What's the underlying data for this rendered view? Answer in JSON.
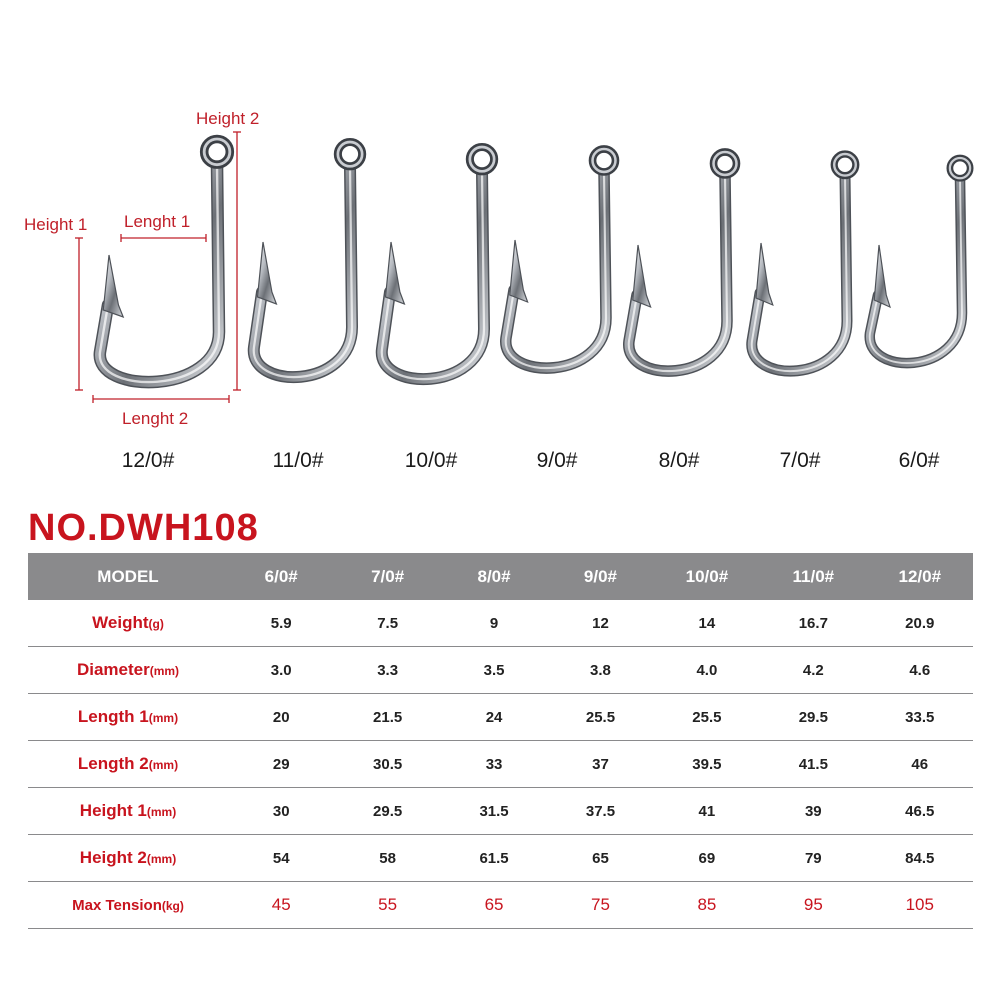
{
  "dimension_labels": {
    "height1": "Height 1",
    "height2": "Height 2",
    "length1": "Lenght 1",
    "length2": "Lenght 2"
  },
  "hook_sizes": [
    "12/0#",
    "11/0#",
    "10/0#",
    "9/0#",
    "8/0#",
    "7/0#",
    "6/0#"
  ],
  "product_code": "NO.DWH108",
  "spec_table": {
    "header_label": "MODEL",
    "models": [
      "6/0#",
      "7/0#",
      "8/0#",
      "9/0#",
      "10/0#",
      "11/0#",
      "12/0#"
    ],
    "rows": [
      {
        "label": "Weight",
        "unit": "(g)",
        "values": [
          "5.9",
          "7.5",
          "9",
          "12",
          "14",
          "16.7",
          "20.9"
        ]
      },
      {
        "label": "Diameter",
        "unit": "(mm)",
        "values": [
          "3.0",
          "3.3",
          "3.5",
          "3.8",
          "4.0",
          "4.2",
          "4.6"
        ]
      },
      {
        "label": "Length 1",
        "unit": "(mm)",
        "values": [
          "20",
          "21.5",
          "24",
          "25.5",
          "25.5",
          "29.5",
          "33.5"
        ]
      },
      {
        "label": "Length 2",
        "unit": "(mm)",
        "values": [
          "29",
          "30.5",
          "33",
          "37",
          "39.5",
          "41.5",
          "46"
        ]
      },
      {
        "label": "Height 1",
        "unit": "(mm)",
        "values": [
          "30",
          "29.5",
          "31.5",
          "37.5",
          "41",
          "39",
          "46.5"
        ]
      },
      {
        "label": "Height 2",
        "unit": "(mm)",
        "values": [
          "54",
          "58",
          "61.5",
          "65",
          "69",
          "79",
          "84.5"
        ]
      },
      {
        "label": "Max Tension",
        "unit": "(kg)",
        "values": [
          "45",
          "55",
          "65",
          "75",
          "85",
          "95",
          "105"
        ]
      }
    ]
  },
  "colors": {
    "accent_red": "#c8141e",
    "header_gray": "#8a8a8c",
    "hook_steel": "#9a9ea4"
  }
}
